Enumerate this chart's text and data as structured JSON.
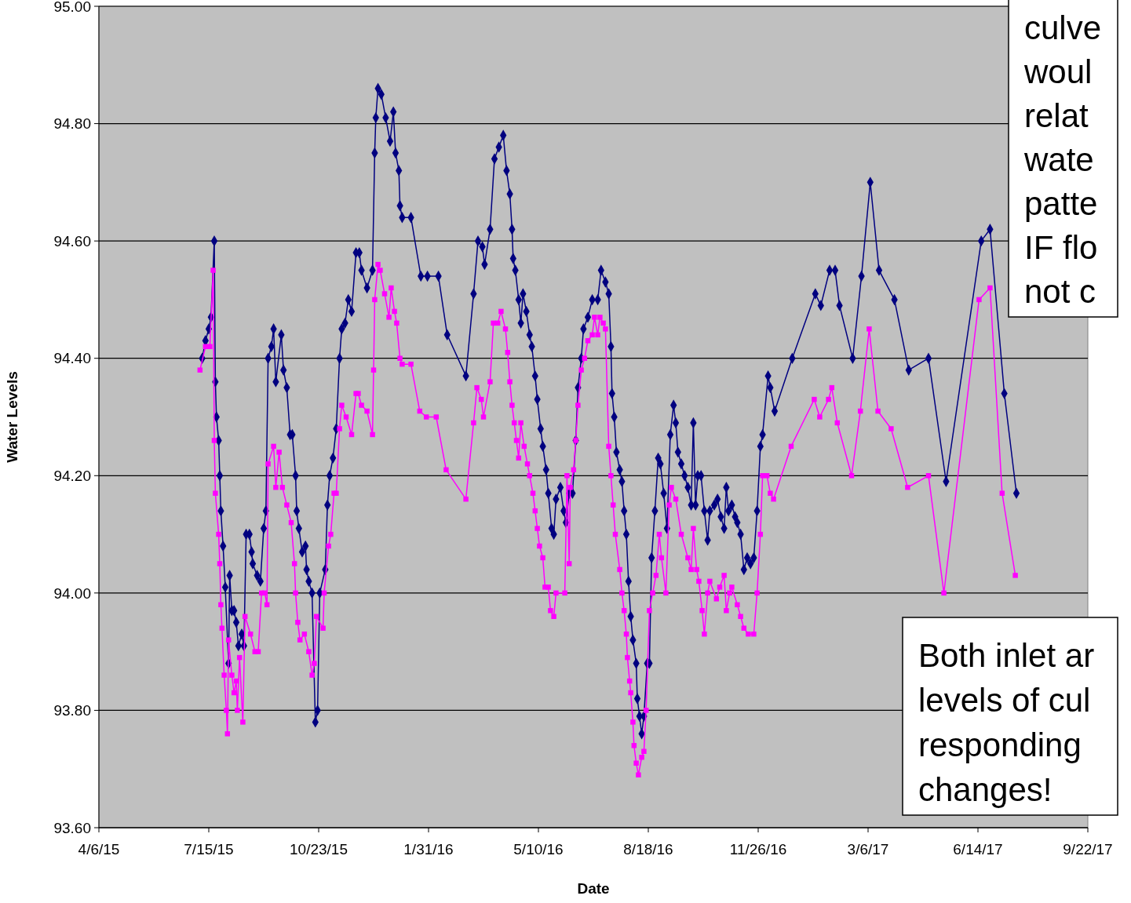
{
  "chart_data": {
    "type": "line",
    "xlabel": "Date",
    "ylabel": "Water Levels",
    "xlim": [
      "2015-04-06",
      "2017-09-22"
    ],
    "xticks": [
      {
        "value": "2015-04-06",
        "label": "4/6/15"
      },
      {
        "value": "2015-07-15",
        "label": "7/15/15"
      },
      {
        "value": "2015-10-23",
        "label": "10/23/15"
      },
      {
        "value": "2016-01-31",
        "label": "1/31/16"
      },
      {
        "value": "2016-05-10",
        "label": "5/10/16"
      },
      {
        "value": "2016-08-18",
        "label": "8/18/16"
      },
      {
        "value": "2016-11-26",
        "label": "11/26/16"
      },
      {
        "value": "2017-03-06",
        "label": "3/6/17"
      },
      {
        "value": "2017-06-14",
        "label": "6/14/17"
      },
      {
        "value": "2017-09-22",
        "label": "9/22/17"
      }
    ],
    "ylim": [
      93.6,
      95
    ],
    "yticks": [
      {
        "value": 93.6,
        "label": "93.60"
      },
      {
        "value": 93.8,
        "label": "93.80"
      },
      {
        "value": 94,
        "label": "94.00"
      },
      {
        "value": 94.2,
        "label": "94.20"
      },
      {
        "value": 94.4,
        "label": "94.40"
      },
      {
        "value": 94.6,
        "label": "94.60"
      },
      {
        "value": 94.8,
        "label": "94.80"
      },
      {
        "value": 95,
        "label": "95.00"
      }
    ],
    "grid": "y",
    "line_style": "solid",
    "annotations": [
      "culve\nwoul\nrelat\nwate\npatte\nIF flo\nnot c",
      "Both inlet ar\nlevels of cul\nresponding \nchanges!"
    ],
    "series": [
      {
        "color": "#000080",
        "marker": "diamond",
        "x": [
          "2015-07-09",
          "2015-07-12",
          "2015-07-15",
          "2015-07-17",
          "2015-07-20",
          "2015-07-21",
          "2015-07-22",
          "2015-07-24",
          "2015-07-25",
          "2015-07-26",
          "2015-07-28",
          "2015-07-30",
          "2015-08-02",
          "2015-08-03",
          "2015-08-05",
          "2015-08-07",
          "2015-08-09",
          "2015-08-11",
          "2015-08-14",
          "2015-08-16",
          "2015-08-18",
          "2015-08-21",
          "2015-08-23",
          "2015-08-24",
          "2015-08-28",
          "2015-08-31",
          "2015-09-03",
          "2015-09-05",
          "2015-09-07",
          "2015-09-10",
          "2015-09-12",
          "2015-09-14",
          "2015-09-19",
          "2015-09-21",
          "2015-09-24",
          "2015-09-27",
          "2015-09-29",
          "2015-10-02",
          "2015-10-03",
          "2015-10-05",
          "2015-10-08",
          "2015-10-11",
          "2015-10-12",
          "2015-10-14",
          "2015-10-17",
          "2015-10-20",
          "2015-10-22",
          "2015-10-24",
          "2015-10-29",
          "2015-10-31",
          "2015-11-02",
          "2015-11-05",
          "2015-11-08",
          "2015-11-11",
          "2015-11-13",
          "2015-11-16",
          "2015-11-19",
          "2015-11-22",
          "2015-11-26",
          "2015-11-29",
          "2015-12-01",
          "2015-12-06",
          "2015-12-11",
          "2015-12-13",
          "2015-12-14",
          "2015-12-16",
          "2015-12-19",
          "2015-12-23",
          "2015-12-27",
          "2015-12-30",
          "2016-01-01",
          "2016-01-04",
          "2016-01-05",
          "2016-01-07",
          "2016-01-15",
          "2016-01-24",
          "2016-01-30",
          "2016-02-09",
          "2016-02-17",
          "2016-03-05",
          "2016-03-12",
          "2016-03-16",
          "2016-03-20",
          "2016-03-22",
          "2016-03-27",
          "2016-03-31",
          "2016-04-04",
          "2016-04-08",
          "2016-04-11",
          "2016-04-14",
          "2016-04-16",
          "2016-04-17",
          "2016-04-19",
          "2016-04-22",
          "2016-04-24",
          "2016-04-26",
          "2016-04-29",
          "2016-05-02",
          "2016-05-04",
          "2016-05-07",
          "2016-05-09",
          "2016-05-12",
          "2016-05-14",
          "2016-05-17",
          "2016-05-19",
          "2016-05-22",
          "2016-05-24",
          "2016-05-26",
          "2016-05-30",
          "2016-06-02",
          "2016-06-04",
          "2016-06-07",
          "2016-06-10",
          "2016-06-13",
          "2016-06-15",
          "2016-06-18",
          "2016-06-20",
          "2016-06-24",
          "2016-06-28",
          "2016-07-03",
          "2016-07-06",
          "2016-07-10",
          "2016-07-13",
          "2016-07-15",
          "2016-07-16",
          "2016-07-18",
          "2016-07-20",
          "2016-07-23",
          "2016-07-25",
          "2016-07-27",
          "2016-07-29",
          "2016-07-31",
          "2016-08-02",
          "2016-08-04",
          "2016-08-07",
          "2016-08-08",
          "2016-08-10",
          "2016-08-12",
          "2016-08-14",
          "2016-08-17",
          "2016-08-19",
          "2016-08-21",
          "2016-08-24",
          "2016-08-27",
          "2016-08-29",
          "2016-09-01",
          "2016-09-04",
          "2016-09-07",
          "2016-09-10",
          "2016-09-12",
          "2016-09-14",
          "2016-09-17",
          "2016-09-20",
          "2016-09-23",
          "2016-09-26",
          "2016-09-28",
          "2016-09-30",
          "2016-10-02",
          "2016-10-05",
          "2016-10-08",
          "2016-10-11",
          "2016-10-13",
          "2016-10-17",
          "2016-10-20",
          "2016-10-23",
          "2016-10-26",
          "2016-10-28",
          "2016-10-30",
          "2016-11-02",
          "2016-11-05",
          "2016-11-07",
          "2016-11-10",
          "2016-11-13",
          "2016-11-16",
          "2016-11-19",
          "2016-11-22",
          "2016-11-25",
          "2016-11-28",
          "2016-11-30",
          "2016-12-05",
          "2016-12-07",
          "2016-12-11",
          "2016-12-27",
          "2017-01-17",
          "2017-01-22",
          "2017-01-30",
          "2017-02-04",
          "2017-02-08",
          "2017-02-20",
          "2017-02-28",
          "2017-03-08",
          "2017-03-16",
          "2017-03-30",
          "2017-04-12",
          "2017-04-30",
          "2017-05-16",
          "2017-06-17",
          "2017-06-25",
          "2017-07-08",
          "2017-07-19"
        ],
        "values": [
          94.4,
          94.43,
          94.45,
          94.47,
          94.6,
          94.36,
          94.3,
          94.26,
          94.2,
          94.14,
          94.08,
          94.01,
          93.88,
          94.03,
          93.97,
          93.97,
          93.95,
          93.91,
          93.93,
          93.91,
          94.1,
          94.1,
          94.07,
          94.05,
          94.03,
          94.02,
          94.11,
          94.14,
          94.4,
          94.42,
          94.45,
          94.36,
          94.44,
          94.38,
          94.35,
          94.27,
          94.27,
          94.2,
          94.14,
          94.11,
          94.07,
          94.08,
          94.04,
          94.02,
          94.0,
          93.78,
          93.8,
          94.0,
          94.04,
          94.15,
          94.2,
          94.23,
          94.28,
          94.4,
          94.45,
          94.46,
          94.5,
          94.48,
          94.58,
          94.58,
          94.55,
          94.52,
          94.55,
          94.75,
          94.81,
          94.86,
          94.85,
          94.81,
          94.77,
          94.82,
          94.75,
          94.72,
          94.66,
          94.64,
          94.64,
          94.54,
          94.54,
          94.54,
          94.44,
          94.37,
          94.51,
          94.6,
          94.59,
          94.56,
          94.62,
          94.74,
          94.76,
          94.78,
          94.72,
          94.68,
          94.62,
          94.57,
          94.55,
          94.5,
          94.46,
          94.51,
          94.48,
          94.44,
          94.42,
          94.37,
          94.33,
          94.28,
          94.25,
          94.21,
          94.17,
          94.11,
          94.1,
          94.16,
          94.18,
          94.14,
          94.12,
          94.17,
          94.17,
          94.26,
          94.35,
          94.4,
          94.45,
          94.47,
          94.5,
          94.5,
          94.55,
          94.53,
          94.51,
          94.42,
          94.34,
          94.3,
          94.24,
          94.21,
          94.19,
          94.14,
          94.1,
          94.02,
          93.96,
          93.92,
          93.88,
          93.82,
          93.79,
          93.76,
          93.79,
          93.88,
          93.88,
          94.06,
          94.14,
          94.23,
          94.22,
          94.17,
          94.11,
          94.27,
          94.32,
          94.29,
          94.24,
          94.22,
          94.2,
          94.18,
          94.15,
          94.29,
          94.15,
          94.2,
          94.2,
          94.14,
          94.09,
          94.14,
          94.15,
          94.16,
          94.13,
          94.11,
          94.18,
          94.14,
          94.15,
          94.13,
          94.12,
          94.1,
          94.04,
          94.06,
          94.05,
          94.06,
          94.14,
          94.25,
          94.27,
          94.37,
          94.35,
          94.31,
          94.4,
          94.51,
          94.49,
          94.55,
          94.55,
          94.49,
          94.4,
          94.54,
          94.7,
          94.55,
          94.5,
          94.38,
          94.4,
          94.19,
          94.6,
          94.62,
          94.34,
          94.17
        ]
      },
      {
        "color": "#ff00ff",
        "marker": "square",
        "x": [
          "2015-07-07",
          "2015-07-12",
          "2015-07-16",
          "2015-07-19",
          "2015-07-20",
          "2015-07-21",
          "2015-07-24",
          "2015-07-25",
          "2015-07-26",
          "2015-07-27",
          "2015-07-29",
          "2015-07-31",
          "2015-08-01",
          "2015-08-02",
          "2015-08-05",
          "2015-08-07",
          "2015-08-09",
          "2015-08-10",
          "2015-08-12",
          "2015-08-15",
          "2015-08-17",
          "2015-08-22",
          "2015-08-26",
          "2015-08-29",
          "2015-09-01",
          "2015-09-04",
          "2015-09-06",
          "2015-09-07",
          "2015-09-12",
          "2015-09-14",
          "2015-09-17",
          "2015-09-20",
          "2015-09-24",
          "2015-09-28",
          "2015-10-01",
          "2015-10-02",
          "2015-10-04",
          "2015-10-06",
          "2015-10-10",
          "2015-10-14",
          "2015-10-17",
          "2015-10-19",
          "2015-10-21",
          "2015-10-27",
          "2015-10-28",
          "2015-11-01",
          "2015-11-03",
          "2015-11-06",
          "2015-11-08",
          "2015-11-11",
          "2015-11-13",
          "2015-11-17",
          "2015-11-22",
          "2015-11-26",
          "2015-11-28",
          "2015-12-01",
          "2015-12-06",
          "2015-12-11",
          "2015-12-12",
          "2015-12-13",
          "2015-12-16",
          "2015-12-18",
          "2015-12-22",
          "2015-12-26",
          "2015-12-28",
          "2015-12-31",
          "2016-01-02",
          "2016-01-05",
          "2016-01-07",
          "2016-01-15",
          "2016-01-23",
          "2016-01-29",
          "2016-02-07",
          "2016-02-16",
          "2016-03-05",
          "2016-03-12",
          "2016-03-15",
          "2016-03-19",
          "2016-03-21",
          "2016-03-27",
          "2016-03-30",
          "2016-04-03",
          "2016-04-06",
          "2016-04-10",
          "2016-04-12",
          "2016-04-14",
          "2016-04-16",
          "2016-04-18",
          "2016-04-20",
          "2016-04-22",
          "2016-04-24",
          "2016-04-27",
          "2016-04-30",
          "2016-05-02",
          "2016-05-05",
          "2016-05-07",
          "2016-05-09",
          "2016-05-11",
          "2016-05-14",
          "2016-05-16",
          "2016-05-19",
          "2016-05-21",
          "2016-05-24",
          "2016-05-26",
          "2016-06-03",
          "2016-06-05",
          "2016-06-07",
          "2016-06-08",
          "2016-06-11",
          "2016-06-13",
          "2016-06-15",
          "2016-06-18",
          "2016-06-21",
          "2016-06-24",
          "2016-06-28",
          "2016-06-30",
          "2016-07-03",
          "2016-07-05",
          "2016-07-08",
          "2016-07-10",
          "2016-07-13",
          "2016-07-15",
          "2016-07-17",
          "2016-07-19",
          "2016-07-23",
          "2016-07-25",
          "2016-07-27",
          "2016-07-29",
          "2016-07-30",
          "2016-08-01",
          "2016-08-02",
          "2016-08-04",
          "2016-08-05",
          "2016-08-07",
          "2016-08-09",
          "2016-08-12",
          "2016-08-14",
          "2016-08-16",
          "2016-08-19",
          "2016-08-22",
          "2016-08-25",
          "2016-08-28",
          "2016-08-30",
          "2016-09-03",
          "2016-09-06",
          "2016-09-08",
          "2016-09-12",
          "2016-09-17",
          "2016-09-23",
          "2016-09-26",
          "2016-09-28",
          "2016-10-01",
          "2016-10-03",
          "2016-10-06",
          "2016-10-08",
          "2016-10-11",
          "2016-10-13",
          "2016-10-19",
          "2016-10-22",
          "2016-10-26",
          "2016-10-28",
          "2016-10-31",
          "2016-11-02",
          "2016-11-07",
          "2016-11-10",
          "2016-11-13",
          "2016-11-17",
          "2016-11-22",
          "2016-11-25",
          "2016-11-28",
          "2016-11-30",
          "2016-12-04",
          "2016-12-07",
          "2016-12-10",
          "2016-12-26",
          "2017-01-16",
          "2017-01-21",
          "2017-01-29",
          "2017-02-01",
          "2017-02-06",
          "2017-02-19",
          "2017-02-27",
          "2017-03-07",
          "2017-03-15",
          "2017-03-27",
          "2017-04-11",
          "2017-04-30",
          "2017-05-14",
          "2017-06-15",
          "2017-06-25",
          "2017-07-06",
          "2017-07-18"
        ],
        "values": [
          94.38,
          94.42,
          94.42,
          94.55,
          94.26,
          94.17,
          94.1,
          94.05,
          93.98,
          93.94,
          93.86,
          93.8,
          93.76,
          93.92,
          93.86,
          93.83,
          93.85,
          93.8,
          93.89,
          93.78,
          93.96,
          93.93,
          93.9,
          93.9,
          94.0,
          94.0,
          93.98,
          94.22,
          94.25,
          94.18,
          94.24,
          94.18,
          94.15,
          94.12,
          94.05,
          94.0,
          93.95,
          93.92,
          93.93,
          93.9,
          93.86,
          93.88,
          93.96,
          93.94,
          94.0,
          94.08,
          94.1,
          94.17,
          94.17,
          94.28,
          94.32,
          94.3,
          94.27,
          94.34,
          94.34,
          94.32,
          94.31,
          94.27,
          94.38,
          94.5,
          94.56,
          94.55,
          94.51,
          94.47,
          94.52,
          94.48,
          94.46,
          94.4,
          94.39,
          94.39,
          94.31,
          94.3,
          94.3,
          94.21,
          94.16,
          94.29,
          94.35,
          94.33,
          94.3,
          94.36,
          94.46,
          94.46,
          94.48,
          94.45,
          94.41,
          94.36,
          94.32,
          94.29,
          94.26,
          94.23,
          94.29,
          94.25,
          94.22,
          94.2,
          94.17,
          94.14,
          94.11,
          94.08,
          94.06,
          94.01,
          94.01,
          93.97,
          93.96,
          94.0,
          94.0,
          94.2,
          94.05,
          94.18,
          94.21,
          94.26,
          94.32,
          94.38,
          94.4,
          94.43,
          94.44,
          94.47,
          94.44,
          94.47,
          94.46,
          94.45,
          94.25,
          94.2,
          94.15,
          94.1,
          94.04,
          94.0,
          93.97,
          93.93,
          93.89,
          93.85,
          93.83,
          93.78,
          93.74,
          93.71,
          93.69,
          93.72,
          93.73,
          93.8,
          93.97,
          94.0,
          94.03,
          94.1,
          94.06,
          94.0,
          94.15,
          94.18,
          94.16,
          94.1,
          94.06,
          94.04,
          94.11,
          94.04,
          94.02,
          93.97,
          93.93,
          94.0,
          94.02,
          93.99,
          94.01,
          94.03,
          93.97,
          94.0,
          94.01,
          93.98,
          93.96,
          93.94,
          93.93,
          93.93,
          94.0,
          94.1,
          94.2,
          94.2,
          94.17,
          94.16,
          94.25,
          94.33,
          94.3,
          94.33,
          94.35,
          94.29,
          94.2,
          94.31,
          94.45,
          94.31,
          94.28,
          94.18,
          94.2,
          94.0,
          94.5,
          94.52,
          94.17,
          94.03
        ]
      }
    ]
  }
}
